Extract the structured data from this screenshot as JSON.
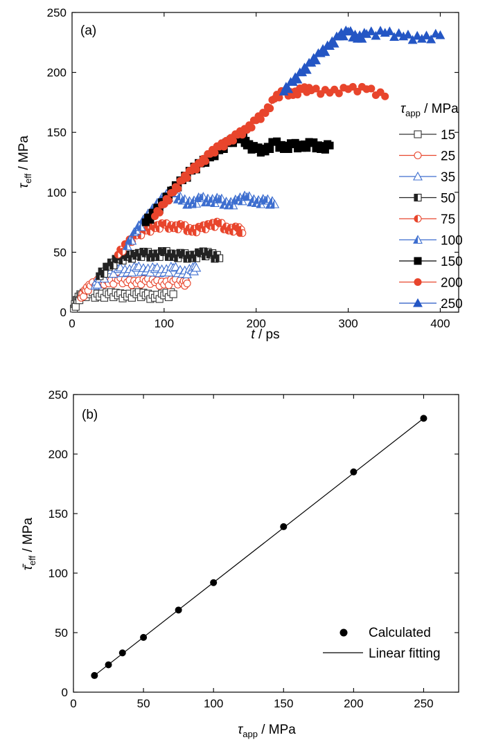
{
  "chart_data": [
    {
      "type": "line",
      "panel_label": "(a)",
      "xlabel_symbol": "t",
      "xlabel_unit": " / ps",
      "ylabel_symbol": "τ",
      "ylabel_sub": "eff",
      "ylabel_unit": " / MPa",
      "xlim": [
        0,
        420
      ],
      "ylim": [
        0,
        250
      ],
      "xticks": [
        0,
        100,
        200,
        300,
        400
      ],
      "yticks": [
        0,
        50,
        100,
        150,
        200,
        250
      ],
      "grid": false,
      "legend_placement": "right",
      "legend_title_symbol": "τ",
      "legend_title_sub": "app",
      "legend_title_unit": " / MPa",
      "series": [
        {
          "name": "15",
          "color": "#333333",
          "marker": "square-open",
          "x": [
            2,
            6,
            10,
            20,
            30,
            40,
            50,
            60,
            70,
            80,
            90,
            100,
            110
          ],
          "y": [
            3,
            10,
            14,
            15,
            13,
            15,
            14,
            13,
            15,
            14,
            12,
            14,
            15
          ]
        },
        {
          "name": "25",
          "color": "#e8452c",
          "marker": "circle-open",
          "x": [
            10,
            15,
            20,
            30,
            40,
            50,
            60,
            70,
            80,
            90,
            100,
            110,
            120,
            125
          ],
          "y": [
            12,
            18,
            22,
            26,
            24,
            27,
            25,
            24,
            26,
            25,
            23,
            26,
            24,
            24
          ]
        },
        {
          "name": "35",
          "color": "#3d6ecf",
          "marker": "triangle-open",
          "x": [
            25,
            30,
            40,
            50,
            60,
            70,
            80,
            90,
            100,
            110,
            120,
            130,
            135
          ],
          "y": [
            22,
            28,
            32,
            36,
            33,
            37,
            34,
            36,
            33,
            37,
            32,
            35,
            37
          ]
        },
        {
          "name": "50",
          "color": "#222222",
          "marker": "square-half",
          "x": [
            30,
            40,
            50,
            60,
            70,
            80,
            90,
            100,
            110,
            120,
            130,
            140,
            150,
            160
          ],
          "y": [
            30,
            38,
            44,
            46,
            47,
            49,
            46,
            50,
            46,
            48,
            45,
            49,
            48,
            45
          ]
        },
        {
          "name": "75",
          "color": "#e8452c",
          "marker": "circle-half",
          "x": [
            50,
            60,
            70,
            80,
            90,
            100,
            110,
            120,
            130,
            140,
            150,
            160,
            170,
            180,
            185
          ],
          "y": [
            48,
            57,
            64,
            68,
            70,
            73,
            70,
            72,
            67,
            70,
            72,
            74,
            68,
            70,
            66
          ]
        },
        {
          "name": "100",
          "color": "#3d6ecf",
          "marker": "triangle-half",
          "x": [
            60,
            70,
            80,
            90,
            100,
            110,
            120,
            130,
            140,
            150,
            160,
            170,
            180,
            190,
            200,
            210,
            220
          ],
          "y": [
            55,
            68,
            78,
            87,
            96,
            99,
            93,
            90,
            95,
            92,
            94,
            89,
            93,
            96,
            91,
            93,
            90
          ]
        },
        {
          "name": "150",
          "color": "#000000",
          "marker": "square-filled",
          "x": [
            80,
            90,
            100,
            110,
            120,
            130,
            140,
            150,
            160,
            170,
            180,
            185,
            190,
            200,
            210,
            220,
            230,
            240,
            250,
            260,
            270,
            280
          ],
          "y": [
            75,
            83,
            92,
            102,
            110,
            118,
            124,
            129,
            135,
            141,
            145,
            147,
            139,
            136,
            134,
            142,
            136,
            140,
            137,
            141,
            136,
            139
          ]
        },
        {
          "name": "200",
          "color": "#e8452c",
          "marker": "circle-filled",
          "x": [
            90,
            100,
            110,
            120,
            130,
            140,
            150,
            160,
            170,
            180,
            190,
            200,
            210,
            220,
            230,
            240,
            250,
            260,
            280,
            300,
            320,
            340
          ],
          "y": [
            80,
            90,
            100,
            110,
            118,
            124,
            132,
            138,
            142,
            148,
            152,
            160,
            166,
            178,
            184,
            181,
            186,
            185,
            183,
            186,
            186,
            180
          ]
        },
        {
          "name": "250",
          "color": "#2456c4",
          "marker": "triangle-filled",
          "x": [
            230,
            240,
            250,
            260,
            270,
            280,
            290,
            300,
            310,
            320,
            340,
            360,
            380,
            400
          ],
          "y": [
            184,
            192,
            200,
            208,
            216,
            222,
            230,
            234,
            228,
            232,
            233,
            230,
            228,
            231
          ]
        }
      ]
    },
    {
      "type": "scatter",
      "panel_label": "(b)",
      "xlabel_symbol": "τ",
      "xlabel_sub": "app",
      "xlabel_unit": " / MPa",
      "ylabel_symbol": "τ̄",
      "ylabel_sub": "eff",
      "ylabel_unit": " / MPa",
      "xlim": [
        0,
        275
      ],
      "ylim": [
        0,
        250
      ],
      "xticks": [
        0,
        50,
        100,
        150,
        200,
        250
      ],
      "yticks": [
        0,
        50,
        100,
        150,
        200,
        250
      ],
      "grid": false,
      "legend_placement": "bottom-right",
      "series": [
        {
          "name": "Calculated",
          "color": "#000000",
          "x": [
            15,
            25,
            35,
            50,
            75,
            100,
            150,
            200,
            250
          ],
          "y": [
            14,
            23,
            33,
            46,
            69,
            92,
            139,
            185,
            230
          ]
        },
        {
          "name": "Linear fitting",
          "color": "#000000",
          "line": true,
          "x": [
            15,
            250
          ],
          "y": [
            14,
            230
          ]
        }
      ]
    }
  ]
}
